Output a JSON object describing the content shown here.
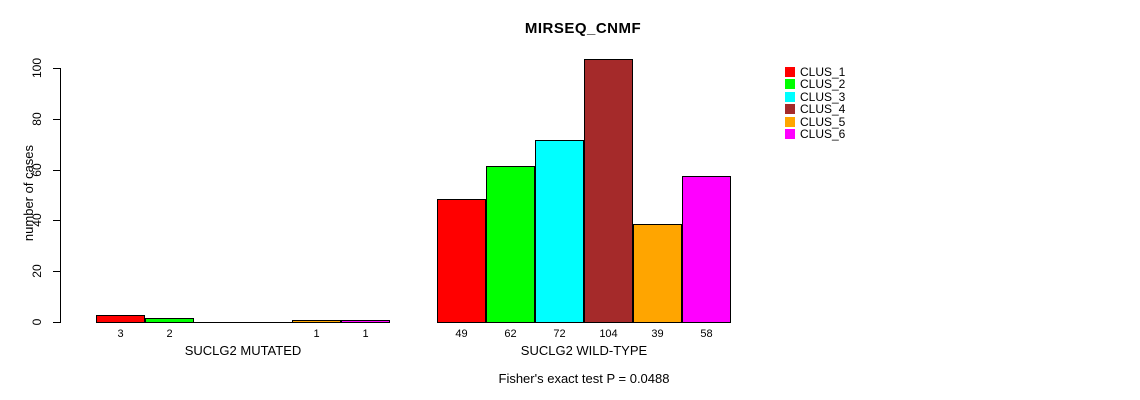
{
  "title": "MIRSEQ_CNMF",
  "footer": "Fisher's exact test P = 0.0488",
  "y_axis": {
    "label": "number of cases"
  },
  "legend": {
    "items": [
      {
        "label": "CLUS_1",
        "color": "#FF0000"
      },
      {
        "label": "CLUS_2",
        "color": "#00FF00"
      },
      {
        "label": "CLUS_3",
        "color": "#00FFFF"
      },
      {
        "label": "CLUS_4",
        "color": "#A52A2A"
      },
      {
        "label": "CLUS_5",
        "color": "#FFA500"
      },
      {
        "label": "CLUS_6",
        "color": "#FF00FF"
      }
    ]
  },
  "chart_data": {
    "type": "bar",
    "title": "MIRSEQ_CNMF",
    "xlabel": "",
    "ylabel": "number of cases",
    "ylim": [
      0,
      100
    ],
    "y_ticks": [
      0,
      20,
      40,
      60,
      80,
      100
    ],
    "grid": false,
    "legend_position": "right",
    "series_names": [
      "CLUS_1",
      "CLUS_2",
      "CLUS_3",
      "CLUS_4",
      "CLUS_5",
      "CLUS_6"
    ],
    "series_colors": [
      "#FF0000",
      "#00FF00",
      "#00FFFF",
      "#A52A2A",
      "#FFA500",
      "#FF00FF"
    ],
    "groups": [
      {
        "label": "SUCLG2 MUTATED",
        "values": [
          3,
          2,
          0,
          0,
          1,
          1
        ],
        "bar_labels": [
          "3",
          "2",
          "",
          "",
          "1",
          "1"
        ]
      },
      {
        "label": "SUCLG2 WILD-TYPE",
        "values": [
          49,
          62,
          72,
          104,
          39,
          58
        ],
        "bar_labels": [
          "49",
          "62",
          "72",
          "104",
          "39",
          "58"
        ]
      }
    ],
    "annotation": "Fisher's exact test P = 0.0488"
  }
}
